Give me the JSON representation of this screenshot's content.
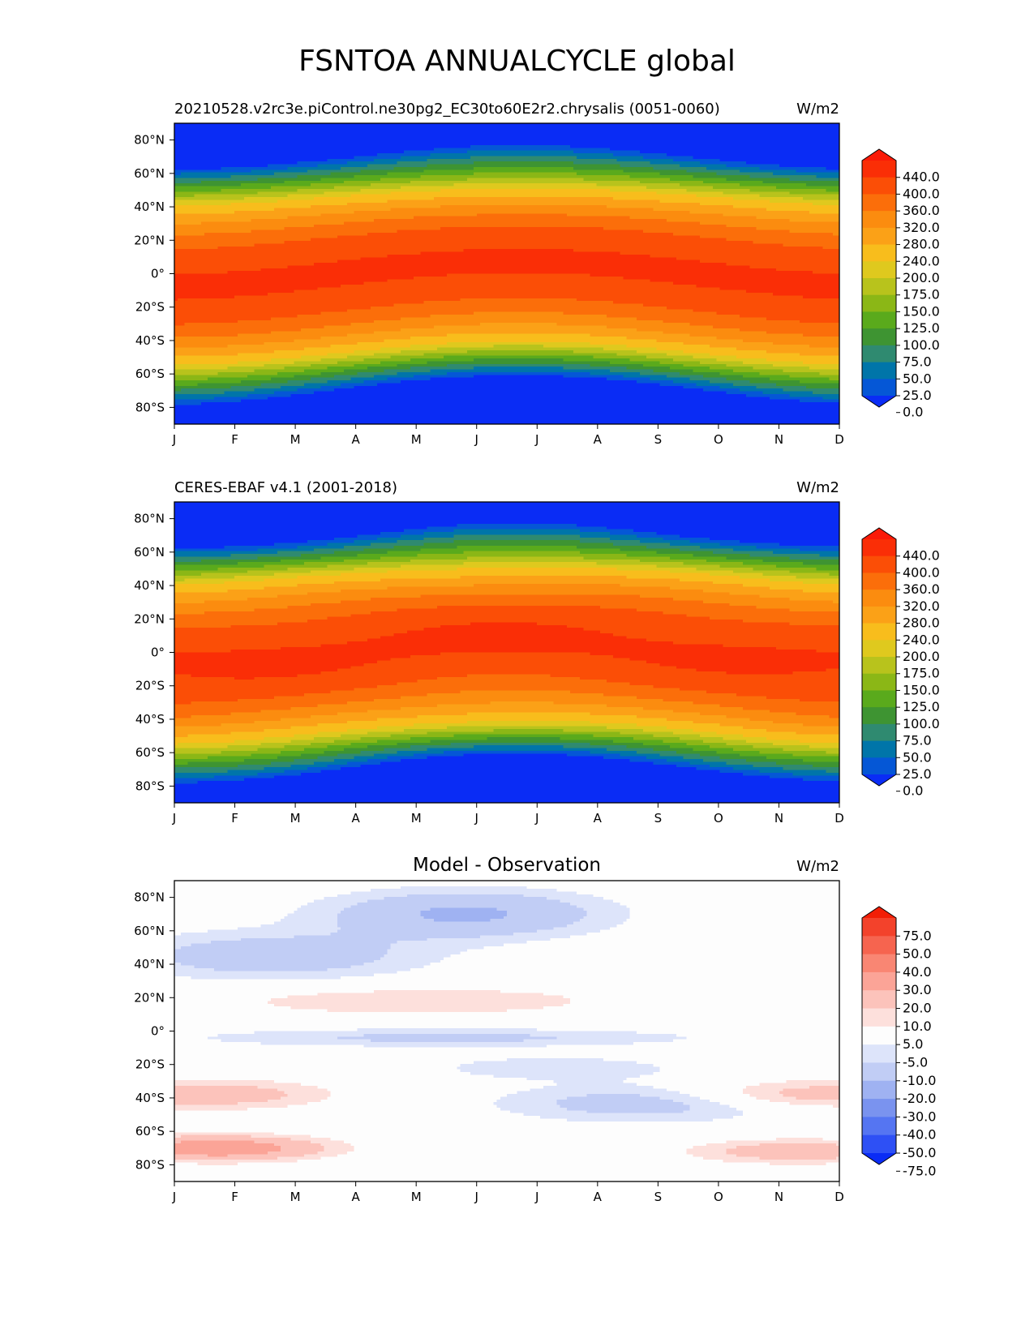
{
  "suptitle": "FSNTOA ANNUALCYCLE global",
  "x_ticks": [
    "J",
    "F",
    "M",
    "A",
    "M",
    "J",
    "J",
    "A",
    "S",
    "O",
    "N",
    "D"
  ],
  "y_ticks": [
    "80°N",
    "60°N",
    "40°N",
    "20°N",
    "0°",
    "20°S",
    "40°S",
    "60°S",
    "80°S"
  ],
  "y_tick_values": [
    80,
    60,
    40,
    20,
    0,
    -20,
    -40,
    -60,
    -80
  ],
  "chart_data": [
    {
      "type": "heatmap",
      "title_left": "20210528.v2rc3e.piControl.ne30pg2_EC30to60E2r2.chrysalis (0051-0060)",
      "title_right": "W/m2",
      "xlim": [
        1,
        12
      ],
      "ylim": [
        -90,
        90
      ],
      "colorbar": {
        "levels": [
          0,
          25,
          50,
          75,
          100,
          125,
          150,
          175,
          200,
          240,
          280,
          320,
          360,
          400,
          440
        ],
        "labels": [
          "440.0",
          "400.0",
          "360.0",
          "320.0",
          "280.0",
          "240.0",
          "200.0",
          "175.0",
          "150.0",
          "125.0",
          "100.0",
          "75.0",
          "50.0",
          "25.0",
          "0.0"
        ],
        "colors": [
          "#0a2cf5",
          "#0557d6",
          "#0075a9",
          "#2f8a70",
          "#3e9432",
          "#5aaa1c",
          "#8bb716",
          "#b8c31c",
          "#dfc91e",
          "#f8bd1c",
          "#fba117",
          "#fb8c0f",
          "#fb6e0a",
          "#fb4e06",
          "#fa2e06",
          "#fa1a08"
        ]
      },
      "model": "insolation"
    },
    {
      "type": "heatmap",
      "title_left": "CERES-EBAF v4.1 (2001-2018)",
      "title_right": "W/m2",
      "xlim": [
        1,
        12
      ],
      "ylim": [
        -90,
        90
      ],
      "colorbar": {
        "levels": [
          0,
          25,
          50,
          75,
          100,
          125,
          150,
          175,
          200,
          240,
          280,
          320,
          360,
          400,
          440
        ],
        "labels": [
          "440.0",
          "400.0",
          "360.0",
          "320.0",
          "280.0",
          "240.0",
          "200.0",
          "175.0",
          "150.0",
          "125.0",
          "100.0",
          "75.0",
          "50.0",
          "25.0",
          "0.0"
        ],
        "colors": [
          "#0a2cf5",
          "#0557d6",
          "#0075a9",
          "#2f8a70",
          "#3e9432",
          "#5aaa1c",
          "#8bb716",
          "#b8c31c",
          "#dfc91e",
          "#f8bd1c",
          "#fba117",
          "#fb8c0f",
          "#fb6e0a",
          "#fb4e06",
          "#fa2e06",
          "#fa1a08"
        ]
      },
      "model": "insolation"
    },
    {
      "type": "heatmap",
      "title_center": "Model - Observation",
      "title_right": "W/m2",
      "xlim": [
        1,
        12
      ],
      "ylim": [
        -90,
        90
      ],
      "colorbar": {
        "levels": [
          -75,
          -50,
          -40,
          -30,
          -20,
          -10,
          -5,
          5,
          10,
          20,
          30,
          40,
          50,
          75
        ],
        "labels": [
          "75.0",
          "50.0",
          "40.0",
          "30.0",
          "20.0",
          "10.0",
          "5.0",
          "-5.0",
          "-10.0",
          "-20.0",
          "-30.0",
          "-40.0",
          "-50.0",
          "-75.0"
        ],
        "colors": [
          "#0a2cf5",
          "#2e50f5",
          "#5575f2",
          "#7a93ef",
          "#9fb2f2",
          "#c1cdf5",
          "#dde4fa",
          "#fdfdfd",
          "#fde0dc",
          "#fcc3bb",
          "#fba497",
          "#f98673",
          "#f6644f",
          "#f3422b",
          "#f21e06"
        ]
      },
      "model": "difference"
    }
  ]
}
